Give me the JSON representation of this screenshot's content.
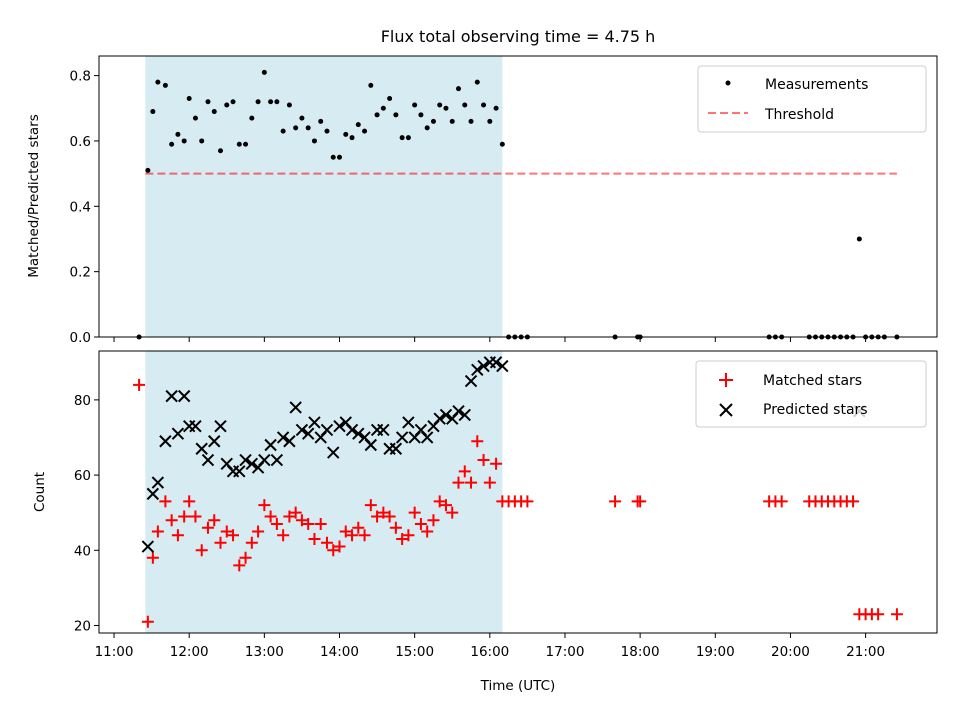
{
  "figure_title": "Flux total observing time = 4.75 h",
  "colors": {
    "shade": "#add8e6",
    "threshold": "#ff0000",
    "matched": "#ff0000",
    "predicted": "#000000",
    "measure": "#000000"
  },
  "chart_data": [
    {
      "type": "scatter",
      "title": "",
      "xlabel": "",
      "ylabel": "Matched/Predicted stars",
      "xlim": [
        "10:48",
        "21:57"
      ],
      "ylim": [
        0,
        0.86
      ],
      "yticks": [
        0.0,
        0.2,
        0.4,
        0.6,
        0.8
      ],
      "ytick_labels": [
        "0.0",
        "0.2",
        "0.4",
        "0.6",
        "0.8"
      ],
      "shaded_span": [
        "11:25",
        "16:10"
      ],
      "legend": {
        "placement": "top-right",
        "entries": [
          "Measurements",
          "Threshold"
        ]
      },
      "threshold": {
        "name": "Threshold",
        "y": 0.5,
        "x_range": [
          "11:25",
          "21:25"
        ]
      },
      "series": [
        {
          "name": "Measurements",
          "marker": "dot",
          "points": [
            [
              "11:20",
              0.0
            ],
            [
              "11:27",
              0.51
            ],
            [
              "11:31",
              0.69
            ],
            [
              "11:35",
              0.78
            ],
            [
              "11:41",
              0.77
            ],
            [
              "11:46",
              0.59
            ],
            [
              "11:51",
              0.62
            ],
            [
              "11:56",
              0.6
            ],
            [
              "12:00",
              0.73
            ],
            [
              "12:05",
              0.67
            ],
            [
              "12:10",
              0.6
            ],
            [
              "12:15",
              0.72
            ],
            [
              "12:20",
              0.69
            ],
            [
              "12:25",
              0.57
            ],
            [
              "12:30",
              0.71
            ],
            [
              "12:35",
              0.72
            ],
            [
              "12:40",
              0.59
            ],
            [
              "12:45",
              0.59
            ],
            [
              "12:50",
              0.67
            ],
            [
              "12:55",
              0.72
            ],
            [
              "13:00",
              0.81
            ],
            [
              "13:05",
              0.72
            ],
            [
              "13:10",
              0.72
            ],
            [
              "13:15",
              0.63
            ],
            [
              "13:20",
              0.71
            ],
            [
              "13:25",
              0.64
            ],
            [
              "13:30",
              0.67
            ],
            [
              "13:35",
              0.64
            ],
            [
              "13:40",
              0.6
            ],
            [
              "13:45",
              0.66
            ],
            [
              "13:50",
              0.63
            ],
            [
              "13:55",
              0.55
            ],
            [
              "14:00",
              0.55
            ],
            [
              "14:05",
              0.62
            ],
            [
              "14:10",
              0.61
            ],
            [
              "14:15",
              0.65
            ],
            [
              "14:20",
              0.63
            ],
            [
              "14:25",
              0.77
            ],
            [
              "14:30",
              0.68
            ],
            [
              "14:35",
              0.7
            ],
            [
              "14:40",
              0.73
            ],
            [
              "14:45",
              0.68
            ],
            [
              "14:50",
              0.61
            ],
            [
              "14:55",
              0.61
            ],
            [
              "15:00",
              0.71
            ],
            [
              "15:05",
              0.68
            ],
            [
              "15:10",
              0.64
            ],
            [
              "15:15",
              0.66
            ],
            [
              "15:20",
              0.71
            ],
            [
              "15:25",
              0.7
            ],
            [
              "15:30",
              0.66
            ],
            [
              "15:35",
              0.76
            ],
            [
              "15:40",
              0.71
            ],
            [
              "15:45",
              0.66
            ],
            [
              "15:50",
              0.78
            ],
            [
              "15:55",
              0.71
            ],
            [
              "16:00",
              0.66
            ],
            [
              "16:05",
              0.7
            ],
            [
              "16:10",
              0.59
            ],
            [
              "16:15",
              0.0
            ],
            [
              "16:20",
              0.0
            ],
            [
              "16:25",
              0.0
            ],
            [
              "16:30",
              0.0
            ],
            [
              "17:40",
              0.0
            ],
            [
              "17:58",
              0.0
            ],
            [
              "18:00",
              0.0
            ],
            [
              "19:43",
              0.0
            ],
            [
              "19:48",
              0.0
            ],
            [
              "19:53",
              0.0
            ],
            [
              "20:15",
              0.0
            ],
            [
              "20:20",
              0.0
            ],
            [
              "20:25",
              0.0
            ],
            [
              "20:30",
              0.0
            ],
            [
              "20:35",
              0.0
            ],
            [
              "20:40",
              0.0
            ],
            [
              "20:45",
              0.0
            ],
            [
              "20:50",
              0.0
            ],
            [
              "20:55",
              0.3
            ],
            [
              "21:00",
              0.0
            ],
            [
              "21:05",
              0.0
            ],
            [
              "21:10",
              0.0
            ],
            [
              "21:15",
              0.0
            ],
            [
              "21:25",
              0.0
            ]
          ]
        }
      ]
    },
    {
      "type": "scatter",
      "title": "",
      "xlabel": "Time (UTC)",
      "ylabel": "Count",
      "xlim": [
        "10:48",
        "21:57"
      ],
      "ylim": [
        18,
        93
      ],
      "yticks": [
        20,
        40,
        60,
        80
      ],
      "ytick_labels": [
        "20",
        "40",
        "60",
        "80"
      ],
      "xticks": [
        "11:00",
        "12:00",
        "13:00",
        "14:00",
        "15:00",
        "16:00",
        "17:00",
        "18:00",
        "19:00",
        "20:00",
        "21:00"
      ],
      "xtick_labels": [
        "11:00",
        "12:00",
        "13:00",
        "14:00",
        "15:00",
        "16:00",
        "17:00",
        "18:00",
        "19:00",
        "20:00",
        "21:00"
      ],
      "shaded_span": [
        "11:25",
        "16:10"
      ],
      "legend": {
        "placement": "top-right",
        "entries": [
          "Matched stars",
          "Predicted stars"
        ]
      },
      "series": [
        {
          "name": "Matched stars",
          "marker": "plus",
          "points": [
            [
              "11:20",
              84
            ],
            [
              "11:27",
              21
            ],
            [
              "11:31",
              38
            ],
            [
              "11:35",
              45
            ],
            [
              "11:41",
              53
            ],
            [
              "11:46",
              48
            ],
            [
              "11:51",
              44
            ],
            [
              "11:56",
              49
            ],
            [
              "12:00",
              53
            ],
            [
              "12:05",
              49
            ],
            [
              "12:10",
              40
            ],
            [
              "12:15",
              46
            ],
            [
              "12:20",
              48
            ],
            [
              "12:25",
              42
            ],
            [
              "12:30",
              45
            ],
            [
              "12:35",
              44
            ],
            [
              "12:40",
              36
            ],
            [
              "12:45",
              38
            ],
            [
              "12:50",
              42
            ],
            [
              "12:55",
              45
            ],
            [
              "13:00",
              52
            ],
            [
              "13:05",
              49
            ],
            [
              "13:10",
              47
            ],
            [
              "13:15",
              44
            ],
            [
              "13:20",
              49
            ],
            [
              "13:25",
              50
            ],
            [
              "13:30",
              48
            ],
            [
              "13:35",
              47
            ],
            [
              "13:40",
              43
            ],
            [
              "13:45",
              47
            ],
            [
              "13:50",
              42
            ],
            [
              "13:55",
              40
            ],
            [
              "14:00",
              41
            ],
            [
              "14:05",
              45
            ],
            [
              "14:10",
              44
            ],
            [
              "14:15",
              46
            ],
            [
              "14:20",
              44
            ],
            [
              "14:25",
              52
            ],
            [
              "14:30",
              49
            ],
            [
              "14:35",
              50
            ],
            [
              "14:40",
              49
            ],
            [
              "14:45",
              46
            ],
            [
              "14:50",
              43
            ],
            [
              "14:55",
              44
            ],
            [
              "15:00",
              50
            ],
            [
              "15:05",
              47
            ],
            [
              "15:10",
              45
            ],
            [
              "15:15",
              48
            ],
            [
              "15:20",
              53
            ],
            [
              "15:25",
              52
            ],
            [
              "15:30",
              50
            ],
            [
              "15:35",
              58
            ],
            [
              "15:40",
              61
            ],
            [
              "15:45",
              58
            ],
            [
              "15:50",
              69
            ],
            [
              "15:55",
              64
            ],
            [
              "16:00",
              58
            ],
            [
              "16:05",
              63
            ],
            [
              "16:10",
              53
            ],
            [
              "16:15",
              53
            ],
            [
              "16:20",
              53
            ],
            [
              "16:25",
              53
            ],
            [
              "16:30",
              53
            ],
            [
              "17:40",
              53
            ],
            [
              "17:58",
              53
            ],
            [
              "18:00",
              53
            ],
            [
              "19:43",
              53
            ],
            [
              "19:48",
              53
            ],
            [
              "19:53",
              53
            ],
            [
              "20:15",
              53
            ],
            [
              "20:20",
              53
            ],
            [
              "20:25",
              53
            ],
            [
              "20:30",
              53
            ],
            [
              "20:35",
              53
            ],
            [
              "20:40",
              53
            ],
            [
              "20:45",
              53
            ],
            [
              "20:50",
              53
            ],
            [
              "20:55",
              23
            ],
            [
              "21:00",
              23
            ],
            [
              "21:05",
              23
            ],
            [
              "21:10",
              23
            ],
            [
              "21:25",
              23
            ]
          ]
        },
        {
          "name": "Predicted stars",
          "marker": "x",
          "points": [
            [
              "11:27",
              41
            ],
            [
              "11:31",
              55
            ],
            [
              "11:35",
              58
            ],
            [
              "11:41",
              69
            ],
            [
              "11:46",
              81
            ],
            [
              "11:51",
              71
            ],
            [
              "11:56",
              81
            ],
            [
              "12:00",
              73
            ],
            [
              "12:05",
              73
            ],
            [
              "12:10",
              67
            ],
            [
              "12:15",
              64
            ],
            [
              "12:20",
              69
            ],
            [
              "12:25",
              73
            ],
            [
              "12:30",
              63
            ],
            [
              "12:35",
              61
            ],
            [
              "12:40",
              61
            ],
            [
              "12:45",
              64
            ],
            [
              "12:50",
              63
            ],
            [
              "12:55",
              62
            ],
            [
              "13:00",
              64
            ],
            [
              "13:05",
              68
            ],
            [
              "13:10",
              64
            ],
            [
              "13:15",
              70
            ],
            [
              "13:20",
              69
            ],
            [
              "13:25",
              78
            ],
            [
              "13:30",
              72
            ],
            [
              "13:35",
              71
            ],
            [
              "13:40",
              74
            ],
            [
              "13:45",
              70
            ],
            [
              "13:50",
              72
            ],
            [
              "13:55",
              66
            ],
            [
              "14:00",
              73
            ],
            [
              "14:05",
              74
            ],
            [
              "14:10",
              72
            ],
            [
              "14:15",
              71
            ],
            [
              "14:20",
              70
            ],
            [
              "14:25",
              68
            ],
            [
              "14:30",
              72
            ],
            [
              "14:35",
              72
            ],
            [
              "14:40",
              67
            ],
            [
              "14:45",
              67
            ],
            [
              "14:50",
              70
            ],
            [
              "14:55",
              74
            ],
            [
              "15:00",
              70
            ],
            [
              "15:05",
              72
            ],
            [
              "15:10",
              70
            ],
            [
              "15:15",
              73
            ],
            [
              "15:20",
              75
            ],
            [
              "15:25",
              76
            ],
            [
              "15:30",
              75
            ],
            [
              "15:35",
              77
            ],
            [
              "15:40",
              76
            ],
            [
              "15:45",
              85
            ],
            [
              "15:50",
              88
            ],
            [
              "15:55",
              89
            ],
            [
              "16:00",
              90
            ],
            [
              "16:05",
              90
            ],
            [
              "16:10",
              89
            ],
            [
              "20:55",
              77
            ]
          ]
        }
      ]
    }
  ]
}
